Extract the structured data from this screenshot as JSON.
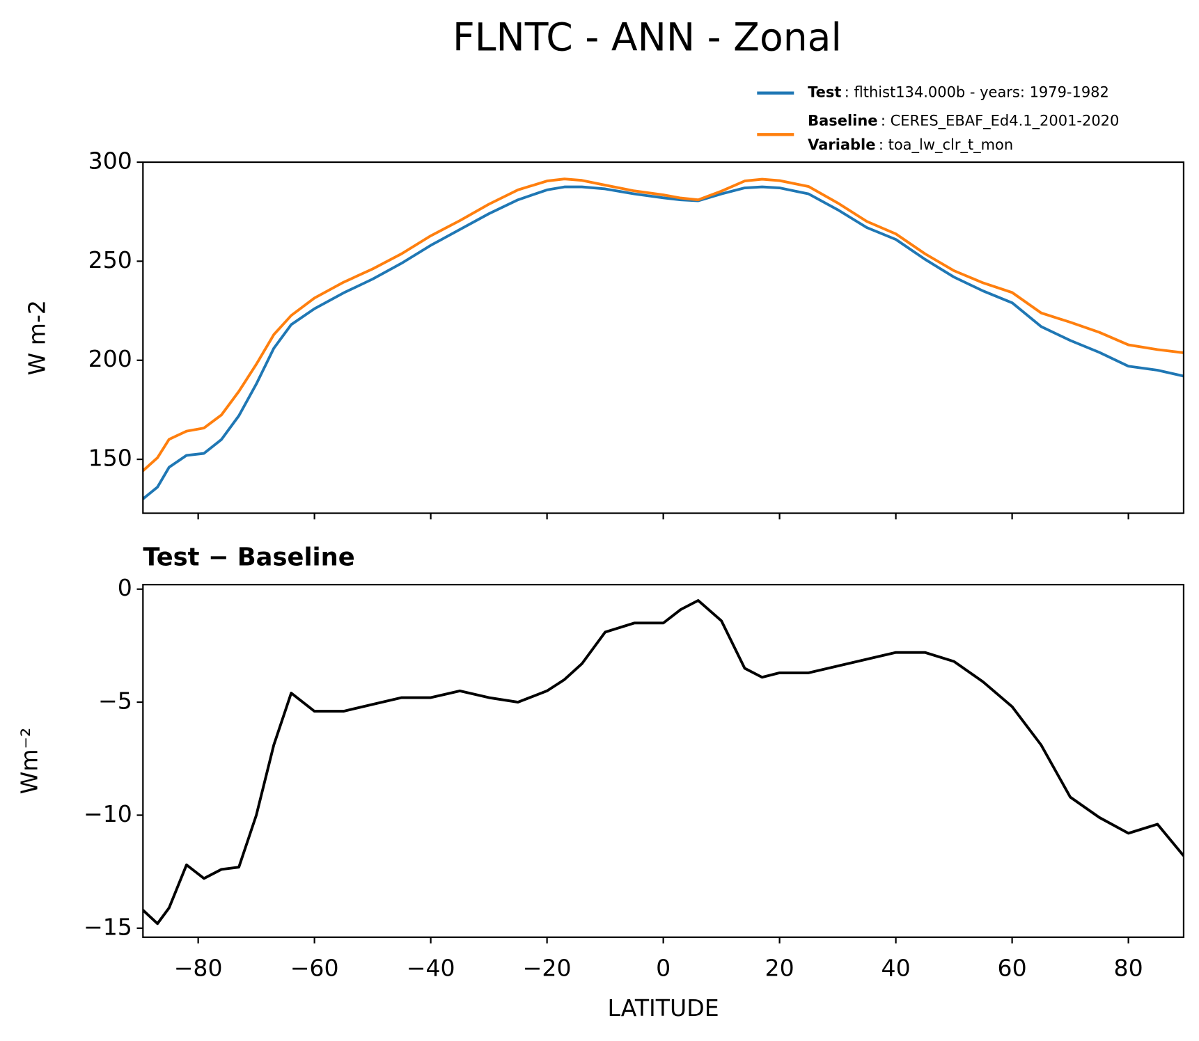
{
  "chart_data": [
    {
      "type": "line",
      "title": "FLNTC - ANN - Zonal",
      "ylabel": "W m-2",
      "x": [
        -89.5,
        -87,
        -85,
        -82,
        -79,
        -76,
        -73,
        -70,
        -67,
        -64,
        -60,
        -55,
        -50,
        -45,
        -40,
        -35,
        -30,
        -25,
        -20,
        -17,
        -14,
        -10,
        -5,
        0,
        3,
        6,
        10,
        14,
        17,
        20,
        25,
        30,
        35,
        40,
        45,
        50,
        55,
        60,
        65,
        70,
        75,
        80,
        85,
        89.5
      ],
      "series": [
        {
          "name": "Test",
          "legend_text": ": flthist134.000b - years: 1979-1982",
          "color": "#1f77b4",
          "values": [
            130,
            136,
            146,
            152,
            153,
            160,
            172,
            188,
            206,
            218,
            226,
            234,
            241,
            249,
            258,
            266,
            274,
            281,
            286,
            287.5,
            287.5,
            286.5,
            284,
            282,
            281,
            280.5,
            284,
            287,
            287.5,
            287,
            284,
            276,
            267,
            261,
            251,
            242,
            235,
            229,
            217,
            210,
            204,
            197,
            195,
            192
          ]
        },
        {
          "name": "Baseline",
          "legend_text": ": CERES_EBAF_Ed4.1_2001-2020",
          "color": "#ff7f0e",
          "values": [
            144.2,
            150.8,
            160.1,
            164.2,
            165.8,
            172.4,
            184.3,
            198,
            212.9,
            222.6,
            231.4,
            239.4,
            246.1,
            253.8,
            262.8,
            270.5,
            278.8,
            286,
            290.5,
            291.5,
            290.8,
            288.4,
            285.5,
            283.5,
            281.9,
            281,
            285.4,
            290.5,
            291.4,
            290.7,
            287.7,
            279.4,
            270.1,
            263.8,
            253.8,
            245.2,
            239.1,
            234.2,
            223.9,
            219.2,
            214.1,
            207.8,
            205.4,
            203.8
          ]
        }
      ],
      "legend_extra": {
        "name": "Variable",
        "text": ": toa_lw_clr_t_mon"
      },
      "xlim": [
        -89.5,
        89.5
      ],
      "xticks": [
        -80,
        -60,
        -40,
        -20,
        0,
        20,
        40,
        60,
        80
      ],
      "ylim": [
        122.8,
        300
      ],
      "yticks": [
        150,
        200,
        250,
        300
      ],
      "legend": "upper right"
    },
    {
      "type": "line",
      "title": "Test − Baseline",
      "ylabel": "Wm⁻²",
      "xlabel": "LATITUDE",
      "x": [
        -89.5,
        -87,
        -85,
        -82,
        -79,
        -76,
        -73,
        -70,
        -67,
        -64,
        -60,
        -55,
        -50,
        -45,
        -40,
        -35,
        -30,
        -25,
        -20,
        -17,
        -14,
        -10,
        -5,
        0,
        3,
        6,
        10,
        14,
        17,
        20,
        25,
        30,
        35,
        40,
        45,
        50,
        55,
        60,
        65,
        70,
        75,
        80,
        85,
        89.5
      ],
      "series": [
        {
          "color": "#000000",
          "values": [
            -14.2,
            -14.8,
            -14.1,
            -12.2,
            -12.8,
            -12.4,
            -12.3,
            -10,
            -6.9,
            -4.6,
            -5.4,
            -5.4,
            -5.1,
            -4.8,
            -4.8,
            -4.5,
            -4.8,
            -5,
            -4.5,
            -4.0,
            -3.3,
            -1.9,
            -1.5,
            -1.5,
            -0.9,
            -0.5,
            -1.4,
            -3.5,
            -3.9,
            -3.7,
            -3.7,
            -3.4,
            -3.1,
            -2.8,
            -2.8,
            -3.2,
            -4.1,
            -5.2,
            -6.9,
            -9.2,
            -10.1,
            -10.8,
            -10.4,
            -11.8
          ]
        }
      ],
      "xlim": [
        -89.5,
        89.5
      ],
      "xticks": [
        {
          "value": -80,
          "label": "−80"
        },
        {
          "value": -60,
          "label": "−60"
        },
        {
          "value": -40,
          "label": "−40"
        },
        {
          "value": -20,
          "label": "−20"
        },
        0,
        20,
        40,
        60,
        80
      ],
      "ylim": [
        -15.4,
        0.2
      ],
      "yticks": [
        {
          "value": -15,
          "label": "−15"
        },
        {
          "value": -10,
          "label": "−10"
        },
        {
          "value": -5,
          "label": "−5"
        },
        0
      ]
    }
  ]
}
